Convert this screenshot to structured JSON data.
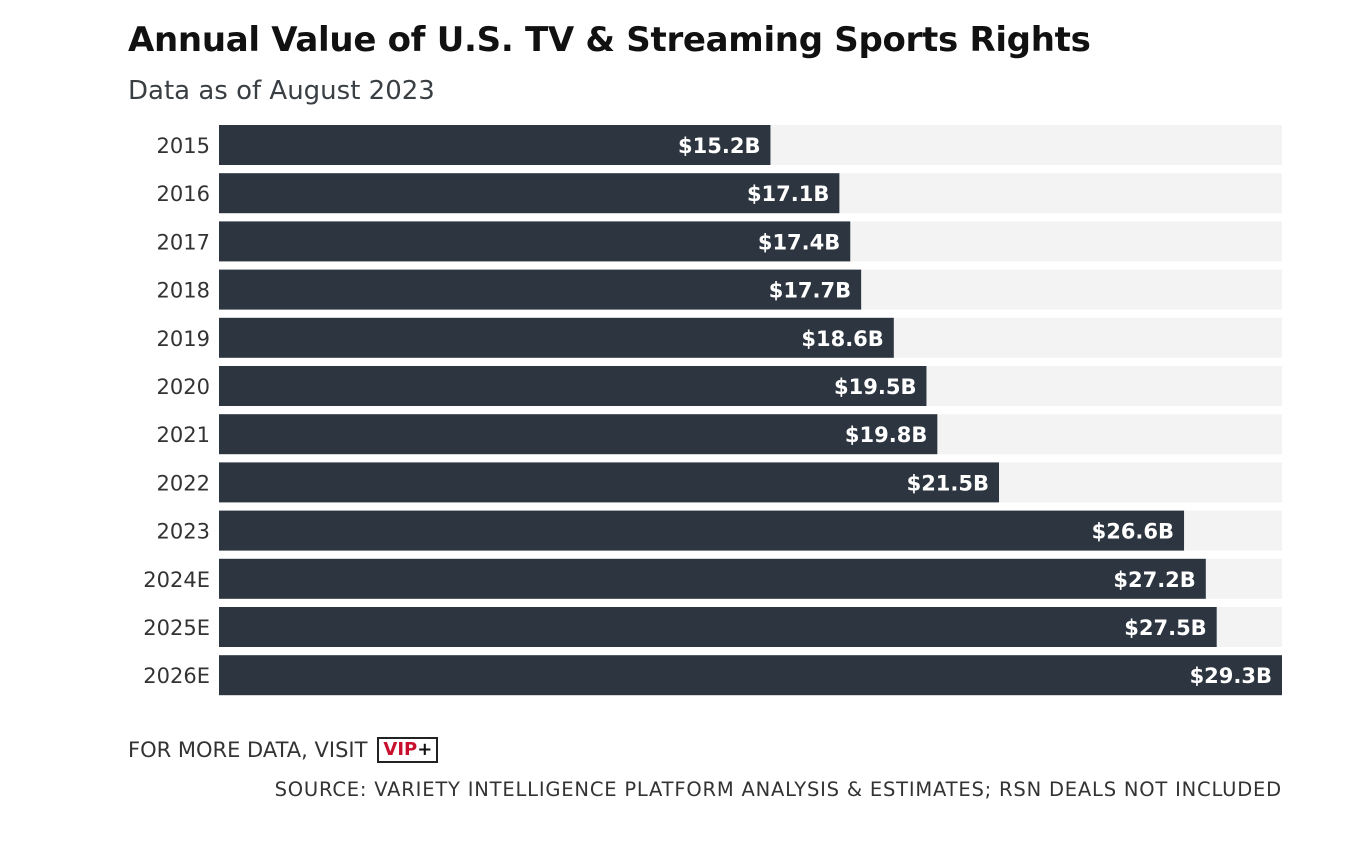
{
  "chart_data": {
    "type": "bar",
    "orientation": "horizontal",
    "title": "Annual Value of U.S. TV & Streaming Sports Rights",
    "subtitle": "Data as of August 2023",
    "categories": [
      "2015",
      "2016",
      "2017",
      "2018",
      "2019",
      "2020",
      "2021",
      "2022",
      "2023",
      "2024E",
      "2025E",
      "2026E"
    ],
    "values": [
      15.2,
      17.1,
      17.4,
      17.7,
      18.6,
      19.5,
      19.8,
      21.5,
      26.6,
      27.2,
      27.5,
      29.3
    ],
    "value_labels": [
      "$15.2B",
      "$17.1B",
      "$17.4B",
      "$17.7B",
      "$18.6B",
      "$19.5B",
      "$19.8B",
      "$21.5B",
      "$26.6B",
      "$27.2B",
      "$27.5B",
      "$29.3B"
    ],
    "xlim": [
      0,
      29.3
    ],
    "grid": false,
    "colors": {
      "bar": "#2d3640",
      "track": "#f3f3f3",
      "label": "#ffffff"
    }
  },
  "footer": {
    "visit_text": "FOR MORE DATA, VISIT",
    "vip_text": "VIP",
    "vip_plus": "+",
    "source": "SOURCE: VARIETY INTELLIGENCE PLATFORM ANALYSIS & ESTIMATES; RSN DEALS NOT INCLUDED"
  }
}
